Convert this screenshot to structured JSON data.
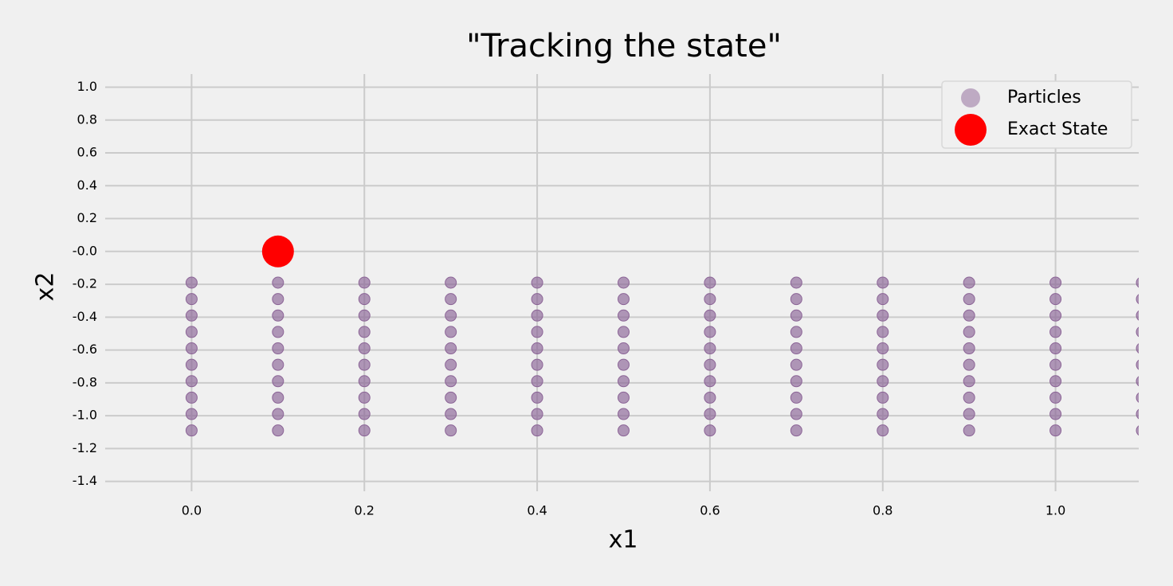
{
  "chart_data": {
    "type": "scatter",
    "title": "\"Tracking the state\"",
    "xlabel": "x1",
    "ylabel": "x2",
    "xlim": [
      -0.1,
      1.1
    ],
    "ylim": [
      -1.46,
      1.08
    ],
    "xticks": [
      {
        "value": 0,
        "label": "0.0"
      },
      0.2,
      0.4,
      0.6,
      0.8,
      {
        "value": 1,
        "label": "1.0"
      }
    ],
    "yticks": [
      {
        "value": -1.4,
        "label": "-1.4"
      },
      {
        "value": -1.2,
        "label": "-1.2"
      },
      {
        "value": -1,
        "label": "-1.0"
      },
      -0.8,
      -0.6,
      -0.4,
      -0.2,
      {
        "value": 0,
        "label": "-0.0"
      },
      0.2,
      0.4,
      0.6,
      0.8,
      {
        "value": 1,
        "label": "1.0"
      }
    ],
    "grid": true,
    "legend": "upper right",
    "series": [
      {
        "name": "Particles",
        "color": "#8b6496",
        "x": [
          0,
          0,
          0,
          0,
          0,
          0,
          0,
          0,
          0,
          0,
          0.1,
          0.1,
          0.1,
          0.1,
          0.1,
          0.1,
          0.1,
          0.1,
          0.1,
          0.1,
          0.2,
          0.2,
          0.2,
          0.2,
          0.2,
          0.2,
          0.2,
          0.2,
          0.2,
          0.2,
          0.3,
          0.3,
          0.3,
          0.3,
          0.3,
          0.3,
          0.3,
          0.3,
          0.3,
          0.3,
          0.4,
          0.4,
          0.4,
          0.4,
          0.4,
          0.4,
          0.4,
          0.4,
          0.4,
          0.4,
          0.5,
          0.5,
          0.5,
          0.5,
          0.5,
          0.5,
          0.5,
          0.5,
          0.5,
          0.5,
          0.6,
          0.6,
          0.6,
          0.6,
          0.6,
          0.6,
          0.6,
          0.6,
          0.6,
          0.6,
          0.7,
          0.7,
          0.7,
          0.7,
          0.7,
          0.7,
          0.7,
          0.7,
          0.7,
          0.7,
          0.8,
          0.8,
          0.8,
          0.8,
          0.8,
          0.8,
          0.8,
          0.8,
          0.8,
          0.8,
          0.9,
          0.9,
          0.9,
          0.9,
          0.9,
          0.9,
          0.9,
          0.9,
          0.9,
          0.9,
          1,
          1,
          1,
          1,
          1,
          1,
          1,
          1,
          1,
          1,
          1.1,
          1.1,
          1.1,
          1.1,
          1.1,
          1.1,
          1.1,
          1.1,
          1.1,
          1.1
        ],
        "y": [
          -0.19,
          -0.29,
          -0.39,
          -0.49,
          -0.59,
          -0.69,
          -0.79,
          -0.89,
          -0.99,
          -1.09,
          -0.19,
          -0.29,
          -0.39,
          -0.49,
          -0.59,
          -0.69,
          -0.79,
          -0.89,
          -0.99,
          -1.09,
          -0.19,
          -0.29,
          -0.39,
          -0.49,
          -0.59,
          -0.69,
          -0.79,
          -0.89,
          -0.99,
          -1.09,
          -0.19,
          -0.29,
          -0.39,
          -0.49,
          -0.59,
          -0.69,
          -0.79,
          -0.89,
          -0.99,
          -1.09,
          -0.19,
          -0.29,
          -0.39,
          -0.49,
          -0.59,
          -0.69,
          -0.79,
          -0.89,
          -0.99,
          -1.09,
          -0.19,
          -0.29,
          -0.39,
          -0.49,
          -0.59,
          -0.69,
          -0.79,
          -0.89,
          -0.99,
          -1.09,
          -0.19,
          -0.29,
          -0.39,
          -0.49,
          -0.59,
          -0.69,
          -0.79,
          -0.89,
          -0.99,
          -1.09,
          -0.19,
          -0.29,
          -0.39,
          -0.49,
          -0.59,
          -0.69,
          -0.79,
          -0.89,
          -0.99,
          -1.09,
          -0.19,
          -0.29,
          -0.39,
          -0.49,
          -0.59,
          -0.69,
          -0.79,
          -0.89,
          -0.99,
          -1.09,
          -0.19,
          -0.29,
          -0.39,
          -0.49,
          -0.59,
          -0.69,
          -0.79,
          -0.89,
          -0.99,
          -1.09,
          -0.19,
          -0.29,
          -0.39,
          -0.49,
          -0.59,
          -0.69,
          -0.79,
          -0.89,
          -0.99,
          -1.09,
          -0.19,
          -0.29,
          -0.39,
          -0.49,
          -0.59,
          -0.69,
          -0.79,
          -0.89,
          -0.99,
          -1.09
        ]
      },
      {
        "name": "Exact State",
        "color": "#ff0000",
        "x": [
          0.1
        ],
        "y": [
          0
        ]
      }
    ]
  }
}
